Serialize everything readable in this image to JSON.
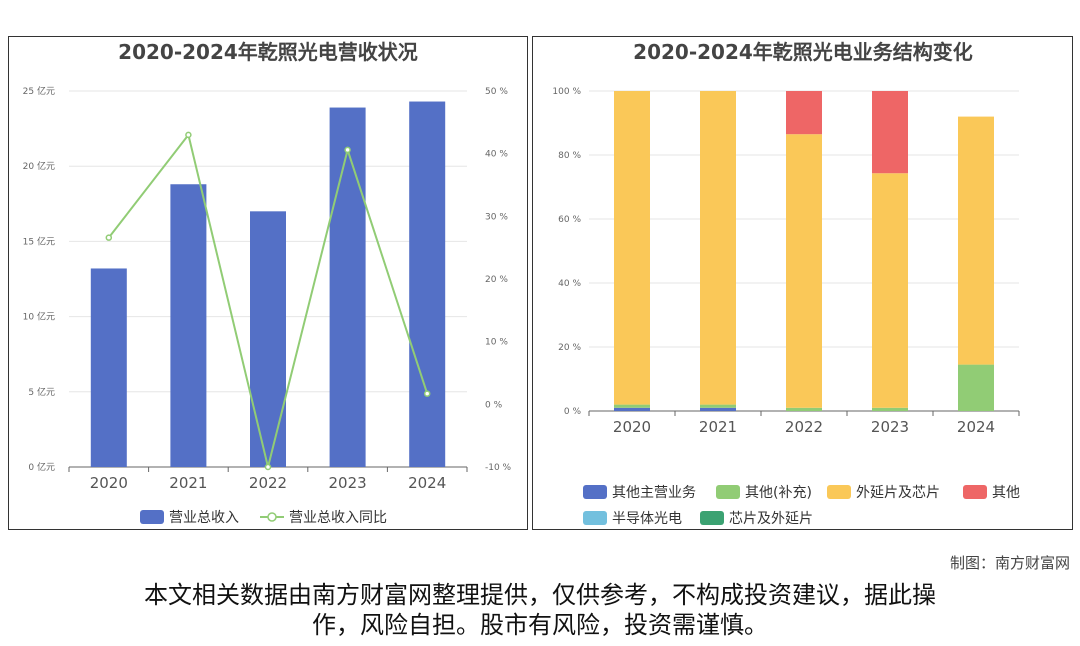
{
  "colors": {
    "bar_blue": "#5470c6",
    "line_green": "#91cc75",
    "other_main": "#5470c6",
    "other_supp": "#91cc75",
    "epi_chip": "#fac858",
    "other": "#ee6666",
    "semiconductor": "#73c0de",
    "chip_epi": "#3ba272"
  },
  "chart_data": [
    {
      "type": "bar",
      "title": "2020-2024年乾照光电营收状况",
      "categories": [
        "2020",
        "2021",
        "2022",
        "2023",
        "2024"
      ],
      "series": [
        {
          "name": "营业总收入",
          "type": "bar",
          "axis": "left",
          "values": [
            13.2,
            18.8,
            17.0,
            23.9,
            24.3
          ]
        },
        {
          "name": "营业总收入同比",
          "type": "line",
          "axis": "right",
          "values": [
            26.6,
            43.0,
            -10.0,
            40.6,
            1.7
          ]
        }
      ],
      "ylim_left": [
        0,
        25
      ],
      "yticks_left": [
        "0 亿元",
        "5 亿元",
        "10 亿元",
        "15 亿元",
        "20 亿元",
        "25 亿元"
      ],
      "ylim_right": [
        -10,
        50
      ],
      "yticks_right": [
        "-10 %",
        "0 %",
        "10 %",
        "20 %",
        "30 %",
        "40 %",
        "50 %"
      ],
      "grid": true,
      "legend": "bottom"
    },
    {
      "type": "bar",
      "stacked": true,
      "title": "2020-2024年乾照光电业务结构变化",
      "categories": [
        "2020",
        "2021",
        "2022",
        "2023",
        "2024"
      ],
      "series": [
        {
          "name": "其他主营业务",
          "values": [
            1.0,
            1.0,
            0,
            0,
            0
          ]
        },
        {
          "name": "其他(补充)",
          "values": [
            1.0,
            1.0,
            1.0,
            1.0,
            14.5
          ]
        },
        {
          "name": "外延片及芯片",
          "values": [
            98.0,
            98.0,
            85.5,
            73.3,
            77.5
          ]
        },
        {
          "name": "其他",
          "values": [
            0,
            0,
            13.5,
            25.7,
            0
          ]
        },
        {
          "name": "半导体光电",
          "values": [
            0,
            0,
            0,
            0,
            0
          ]
        },
        {
          "name": "芯片及外延片",
          "values": [
            0,
            0,
            0,
            0,
            0
          ]
        }
      ],
      "ylim": [
        0,
        100
      ],
      "yticks": [
        "0 %",
        "20 %",
        "40 %",
        "60 %",
        "80 %",
        "100 %"
      ],
      "grid": true,
      "legend": "bottom"
    }
  ],
  "footer": {
    "credit": "制图：南方财富网",
    "disclaimer_line1": "本文相关数据由南方财富网整理提供，仅供参考，不构成投资建议，据此操",
    "disclaimer_line2": "作，风险自担。股市有风险，投资需谨慎。"
  }
}
